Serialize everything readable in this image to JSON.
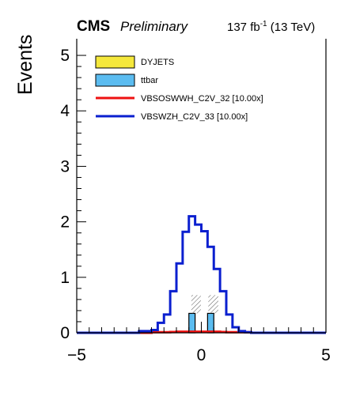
{
  "header": {
    "experiment": "CMS",
    "status": "Preliminary",
    "lumi_value": "137 fb",
    "lumi_exp": "-1",
    "energy": " (13 TeV)"
  },
  "chart_data": {
    "type": "histogram",
    "ylabel": "Events",
    "xlim": [
      -5,
      5
    ],
    "ylim": [
      0,
      5.3
    ],
    "x_ticks": [
      "−5",
      "0",
      "5"
    ],
    "y_ticks": [
      "0",
      "1",
      "2",
      "3",
      "4",
      "5"
    ],
    "bin_edges": [
      -5.0,
      -4.5,
      -4.0,
      -3.5,
      -3.0,
      -2.5,
      -2.0,
      -1.75,
      -1.5,
      -1.25,
      -1.0,
      -0.75,
      -0.5,
      -0.25,
      0.0,
      0.25,
      0.5,
      0.75,
      1.0,
      1.25,
      1.5,
      1.75,
      2.0,
      2.5,
      3.0,
      3.5,
      4.0,
      4.5,
      5.0
    ],
    "stack": [
      {
        "name": "DYJETS",
        "color": "#f5e83c",
        "values": [
          0,
          0,
          0,
          0,
          0,
          0,
          0,
          0,
          0,
          0,
          0,
          0,
          0,
          0,
          0,
          0,
          0,
          0,
          0,
          0,
          0,
          0,
          0,
          0,
          0,
          0,
          0,
          0
        ]
      },
      {
        "name": "ttbar",
        "color": "#5bbcf0",
        "values": [
          0,
          0,
          0,
          0,
          0,
          0,
          0,
          0,
          0,
          0,
          0,
          0,
          0.35,
          0,
          0,
          0.35,
          0,
          0,
          0,
          0,
          0,
          0,
          0,
          0,
          0,
          0,
          0,
          0
        ]
      }
    ],
    "uncertainty": [
      {
        "x0": -0.4,
        "x1": -0.02,
        "low": 0.35,
        "high": 0.68
      },
      {
        "x0": 0.28,
        "x1": 0.68,
        "low": 0.35,
        "high": 0.68
      }
    ],
    "overlays": [
      {
        "name": "VBSOSWWH_C2V_32 [10.00x]",
        "color": "#ee1111",
        "values": [
          0,
          0,
          0,
          0,
          0,
          0,
          0.01,
          0.01,
          0.01,
          0.015,
          0.02,
          0.02,
          0.02,
          0.02,
          0.02,
          0.02,
          0.02,
          0.015,
          0.01,
          0.01,
          0.01,
          0.01,
          0,
          0,
          0,
          0,
          0,
          0
        ]
      },
      {
        "name": "VBSWZH_C2V_33 [10.00x]",
        "color": "#0a1fcf",
        "values": [
          0,
          0,
          0,
          0,
          0,
          0.03,
          0.05,
          0.18,
          0.33,
          0.75,
          1.25,
          1.82,
          2.1,
          1.95,
          1.83,
          1.55,
          1.15,
          0.75,
          0.33,
          0.1,
          0.03,
          0.01,
          0,
          0,
          0,
          0,
          0,
          0
        ]
      }
    ]
  },
  "legend": [
    {
      "label": "DYJETS",
      "kind": "box",
      "color": "#f5e83c"
    },
    {
      "label": "ttbar",
      "kind": "box",
      "color": "#5bbcf0"
    },
    {
      "label": "VBSOSWWH_C2V_32 [10.00x]",
      "kind": "line",
      "color": "#ee1111"
    },
    {
      "label": "VBSWZH_C2V_33 [10.00x]",
      "kind": "line",
      "color": "#0a1fcf"
    }
  ]
}
